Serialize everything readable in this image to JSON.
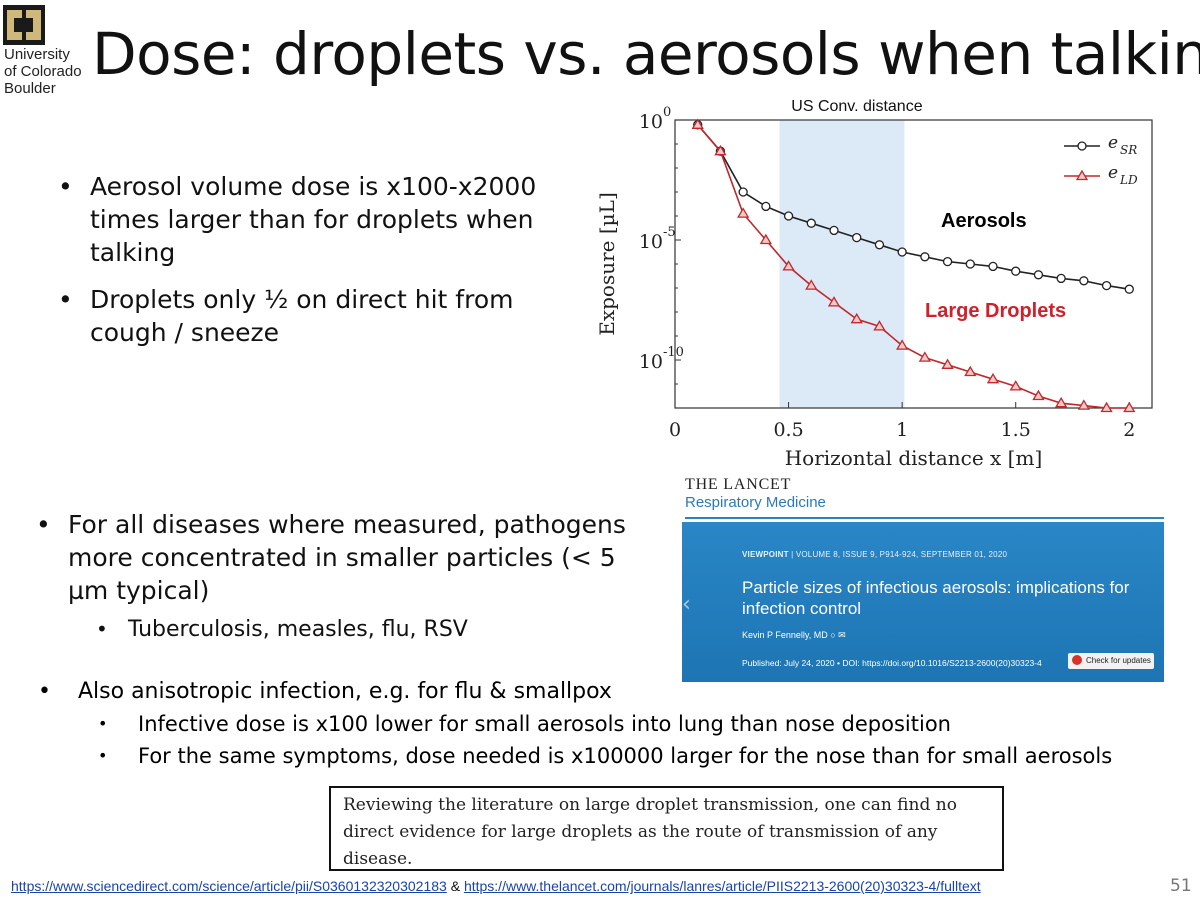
{
  "logo": {
    "icon": "cu-buffalo-monogram-icon",
    "lines": [
      "University",
      "of Colorado",
      "Boulder"
    ],
    "color": "#CFB87C"
  },
  "title": "Dose: droplets vs. aerosols when talking",
  "bullets_top": [
    "Aerosol volume dose is x100-x2000 times larger than for droplets when talking",
    "Droplets only ½ on direct hit from cough / sneeze"
  ],
  "bullets_mid": {
    "main": "For all diseases where measured, pathogens more concentrated in smaller particles (< 5 µm typical)",
    "sub": "Tuberculosis, measles, flu, RSV"
  },
  "bullets_low": {
    "main": "Also anisotropic infection, e.g. for flu & smallpox",
    "subs": [
      "Infective dose is x100 lower for small aerosols into lung than nose deposition",
      "For the same symptoms, dose needed is x100000 larger for the nose than for small aerosols"
    ]
  },
  "chart_data": {
    "type": "line",
    "xlabel": "Horizontal distance x [m]",
    "ylabel": "Exposure [µL]",
    "xlim": [
      0,
      2.1
    ],
    "ylog": true,
    "ylim_exp": [
      -12,
      0
    ],
    "x_ticks": [
      "0",
      "0.5",
      "1",
      "1.5",
      "2"
    ],
    "x_tick_values": [
      0,
      0.5,
      1,
      1.5,
      2
    ],
    "y_ticks": [
      {
        "exp": 0,
        "base": "10",
        "sup": "0"
      },
      {
        "exp": -5,
        "base": "10",
        "sup": "-5"
      },
      {
        "exp": -10,
        "base": "10",
        "sup": "-10"
      }
    ],
    "shaded_region": {
      "x": [
        0.46,
        1.01
      ],
      "label": "US Conv. distance",
      "color": "#dce9f7"
    },
    "x": [
      0.1,
      0.2,
      0.3,
      0.4,
      0.5,
      0.6,
      0.7,
      0.8,
      0.9,
      1.0,
      1.1,
      1.2,
      1.3,
      1.4,
      1.5,
      1.6,
      1.7,
      1.8,
      1.9,
      2.0
    ],
    "series": [
      {
        "name_base": "e",
        "name_sub": "SR",
        "color": "#222222",
        "marker": "circle",
        "values_exp": [
          -0.2,
          -1.3,
          -3.0,
          -3.6,
          -4.0,
          -4.3,
          -4.6,
          -4.9,
          -5.2,
          -5.5,
          -5.7,
          -5.9,
          -6.0,
          -6.1,
          -6.3,
          -6.45,
          -6.6,
          -6.7,
          -6.9,
          -7.05
        ]
      },
      {
        "name_base": "e",
        "name_sub": "LD",
        "color": "#c0282b",
        "marker": "triangle",
        "values_exp": [
          -0.2,
          -1.3,
          -3.9,
          -5.0,
          -6.1,
          -6.9,
          -7.6,
          -8.3,
          -8.6,
          -9.4,
          -9.9,
          -10.2,
          -10.5,
          -10.8,
          -11.1,
          -11.5,
          -11.8,
          -11.9,
          -12.0,
          -12.0
        ]
      }
    ],
    "annotations": [
      {
        "text": "Aerosols",
        "color": "#000000"
      },
      {
        "text": "Large Droplets",
        "color": "#d0202a"
      }
    ],
    "legend": "top-right"
  },
  "lancet": {
    "brand": "THE LANCET",
    "journal": "Respiratory Medicine",
    "viewpoint_label": "VIEWPOINT",
    "viewpoint_meta": "VOLUME 8, ISSUE 9, P914-924, SEPTEMBER 01, 2020",
    "article_title": "Particle sizes of infectious aerosols: implications for infection control",
    "author": "Kevin P Fennelly, MD",
    "published": "Published: July 24, 2020 • DOI: https://doi.org/10.1016/S2213-2600(20)30323-4",
    "updates": "Check for updates",
    "accent": "#1f7bbd"
  },
  "quote": "Reviewing the literature on large droplet transmission, one can find no direct evidence for large droplets as the route of transmission of any disease.",
  "footer": {
    "link1": "https://www.sciencedirect.com/science/article/pii/S0360132320302183",
    "amp": " & ",
    "link2": " https://www.thelancet.com/journals/lanres/article/PIIS2213-2600(20)30323-4/fulltext"
  },
  "page_number": "51"
}
